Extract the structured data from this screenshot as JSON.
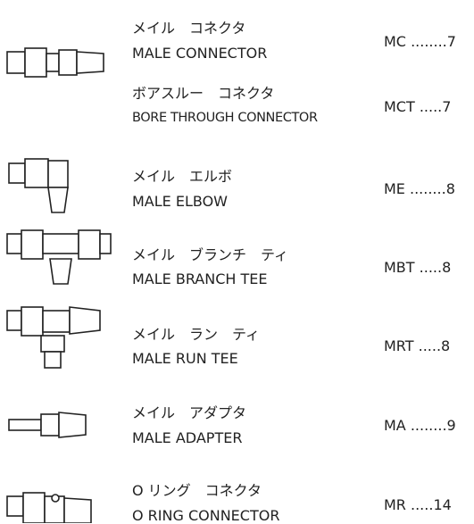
{
  "entries": [
    {
      "jp": "メイル　コネクタ",
      "en": "MALE CONNECTOR",
      "code": "MC ........7"
    },
    {
      "jp": "ボアスルー　コネクタ",
      "en": "BORE THROUGH CONNECTOR",
      "code": "MCT .....7"
    },
    {
      "jp": "メイル　エルボ",
      "en": "MALE ELBOW",
      "code": "ME ........8"
    },
    {
      "jp": "メイル　ブランチ　ティ",
      "en": "MALE BRANCH TEE",
      "code": "MBT .....8"
    },
    {
      "jp": "メイル　ラン　ティ",
      "en": "MALE RUN TEE",
      "code": "MRT .....8"
    },
    {
      "jp": "メイル　アダプタ",
      "en": "MALE ADAPTER",
      "code": "MA ........9"
    },
    {
      "jp": "O リング　コネクタ",
      "en": "O RING CONNECTOR",
      "code": "MR .....14"
    }
  ]
}
